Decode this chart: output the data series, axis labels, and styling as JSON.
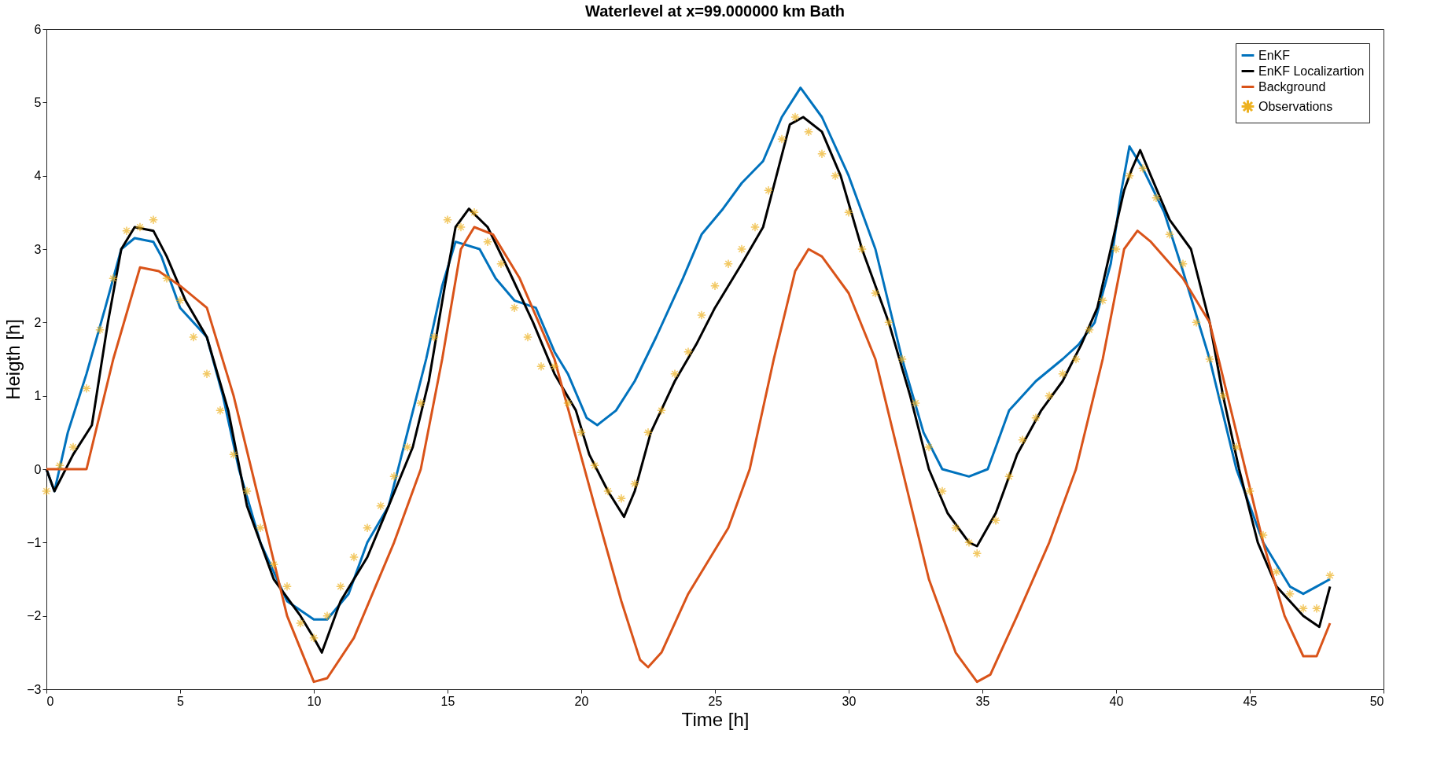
{
  "chart_data": {
    "type": "line",
    "title": "Waterlevel at x=99.000000 km Bath",
    "xlabel": "Time [h]",
    "ylabel": "Heigth [h]",
    "xlim": [
      0,
      50
    ],
    "xticks": [
      0,
      5,
      10,
      15,
      20,
      25,
      30,
      35,
      40,
      45,
      50
    ],
    "ylim": [
      -3,
      6
    ],
    "yticks": [
      -3,
      -2,
      -1,
      0,
      1,
      2,
      3,
      4,
      5,
      6
    ],
    "grid": false,
    "legend": "top right",
    "series": [
      {
        "name": "EnKF",
        "color": "#0072bd",
        "type": "line",
        "x": [
          0,
          0.3,
          0.8,
          1.5,
          2.2,
          2.8,
          3.3,
          4,
          4.3,
          5,
          6,
          6.6,
          7.2,
          8,
          9,
          10,
          10.5,
          11.3,
          12,
          12.8,
          13.5,
          14.2,
          14.8,
          15.3,
          16.2,
          16.8,
          17.5,
          18.3,
          19,
          19.5,
          20.2,
          20.6,
          21.3,
          22,
          22.8,
          23.8,
          24.5,
          25.3,
          26,
          26.8,
          27.5,
          28.2,
          29,
          30,
          31,
          32,
          32.8,
          33.5,
          34.5,
          35.2,
          36,
          37,
          38,
          38.6,
          39.2,
          39.8,
          40.2,
          40.5,
          41,
          41.8,
          42.5,
          43.5,
          44.5,
          45.5,
          46.5,
          47,
          47.5,
          48
        ],
        "values": [
          0,
          -0.3,
          0.5,
          1.3,
          2.2,
          3.0,
          3.15,
          3.1,
          2.9,
          2.2,
          1.8,
          1.0,
          0,
          -1.0,
          -1.8,
          -2.05,
          -2.05,
          -1.7,
          -1.0,
          -0.5,
          0.5,
          1.5,
          2.5,
          3.1,
          3.0,
          2.6,
          2.3,
          2.2,
          1.6,
          1.3,
          0.7,
          0.6,
          0.8,
          1.2,
          1.8,
          2.6,
          3.2,
          3.55,
          3.9,
          4.2,
          4.8,
          5.2,
          4.8,
          4.0,
          3.0,
          1.5,
          0.5,
          0,
          -0.1,
          0,
          0.8,
          1.2,
          1.5,
          1.7,
          2.0,
          2.8,
          3.8,
          4.4,
          4.1,
          3.5,
          2.7,
          1.5,
          0,
          -1.0,
          -1.6,
          -1.7,
          -1.6,
          -1.5
        ]
      },
      {
        "name": "EnKF Localizartion",
        "color": "#000000",
        "type": "line",
        "x": [
          0,
          0.3,
          1,
          1.7,
          2.3,
          2.8,
          3.3,
          4,
          4.5,
          5.2,
          6,
          6.8,
          7.5,
          8.5,
          9.5,
          10,
          10.3,
          11,
          12,
          12.8,
          13.7,
          14.3,
          14.9,
          15.3,
          15.8,
          16.5,
          17.3,
          18.2,
          19,
          19.8,
          20.3,
          21,
          21.6,
          22,
          22.6,
          23.5,
          24.3,
          25,
          26,
          26.8,
          27.3,
          27.8,
          28.3,
          29,
          29.7,
          30.5,
          31.5,
          32.3,
          33,
          33.7,
          34.5,
          34.8,
          35.5,
          36.3,
          37.2,
          38,
          38.7,
          39.3,
          39.8,
          40.3,
          40.6,
          40.9,
          41.3,
          42,
          42.8,
          43.5,
          44,
          44.6,
          45.3,
          46,
          47,
          47.6,
          48
        ],
        "values": [
          0,
          -0.3,
          0.2,
          0.6,
          2.0,
          3.0,
          3.3,
          3.25,
          2.9,
          2.3,
          1.8,
          0.8,
          -0.5,
          -1.5,
          -2.0,
          -2.3,
          -2.5,
          -1.8,
          -1.2,
          -0.5,
          0.3,
          1.2,
          2.5,
          3.3,
          3.55,
          3.3,
          2.7,
          2.0,
          1.3,
          0.8,
          0.2,
          -0.3,
          -0.65,
          -0.3,
          0.5,
          1.2,
          1.7,
          2.2,
          2.8,
          3.3,
          4.0,
          4.7,
          4.8,
          4.6,
          4.0,
          3.0,
          2.0,
          1.0,
          0,
          -0.6,
          -1.0,
          -1.05,
          -0.6,
          0.2,
          0.8,
          1.2,
          1.7,
          2.2,
          3.0,
          3.8,
          4.1,
          4.35,
          4.0,
          3.4,
          3.0,
          2.0,
          1.0,
          0,
          -1.0,
          -1.6,
          -2.0,
          -2.15,
          -1.6
        ]
      },
      {
        "name": "Background",
        "color": "#d95319",
        "type": "line",
        "x": [
          0,
          1.5,
          2.5,
          3.5,
          4.2,
          5,
          6,
          7,
          8,
          9,
          10,
          10.5,
          11.5,
          13,
          14,
          14.8,
          15.5,
          16,
          16.7,
          17.7,
          19,
          20.5,
          21.5,
          22.2,
          22.5,
          23,
          24,
          25.5,
          26.3,
          27.2,
          28,
          28.5,
          29,
          30,
          31,
          32,
          33,
          34,
          34.8,
          35.3,
          36.3,
          37.5,
          38.5,
          39.5,
          40.3,
          40.8,
          41.3,
          42.5,
          43.5,
          44.5,
          45.5,
          46.3,
          47,
          47.5,
          48
        ],
        "values": [
          0,
          0,
          1.5,
          2.75,
          2.7,
          2.5,
          2.2,
          1.0,
          -0.5,
          -2.0,
          -2.9,
          -2.85,
          -2.3,
          -1.0,
          0,
          1.5,
          3.0,
          3.3,
          3.2,
          2.6,
          1.5,
          -0.5,
          -1.8,
          -2.6,
          -2.7,
          -2.5,
          -1.7,
          -0.8,
          0,
          1.5,
          2.7,
          3.0,
          2.9,
          2.4,
          1.5,
          0,
          -1.5,
          -2.5,
          -2.9,
          -2.8,
          -2.0,
          -1.0,
          0,
          1.5,
          3.0,
          3.25,
          3.1,
          2.6,
          2.0,
          0.5,
          -1.0,
          -2.0,
          -2.55,
          -2.55,
          -2.1
        ]
      },
      {
        "name": "Observations",
        "color": "#edb120",
        "type": "scatter",
        "marker": "cross",
        "x": [
          0,
          0.5,
          1,
          1.5,
          2,
          2.5,
          3,
          3.5,
          4,
          4.5,
          5,
          5.5,
          6,
          6.5,
          7,
          7.5,
          8,
          8.5,
          9,
          9.5,
          10,
          10.5,
          11,
          11.5,
          12,
          12.5,
          13,
          13.5,
          14,
          14.5,
          15,
          15.5,
          16,
          16.5,
          17,
          17.5,
          18,
          18.5,
          19,
          19.5,
          20,
          20.5,
          21,
          21.5,
          22,
          22.5,
          23,
          23.5,
          24,
          24.5,
          25,
          25.5,
          26,
          26.5,
          27,
          27.5,
          28,
          28.5,
          29,
          29.5,
          30,
          30.5,
          31,
          31.5,
          32,
          32.5,
          33,
          33.5,
          34,
          34.5,
          34.8,
          35.5,
          36,
          36.5,
          37,
          37.5,
          38,
          38.5,
          39,
          39.5,
          40,
          40.5,
          41,
          41.5,
          42,
          42.5,
          43,
          43.5,
          44,
          44.5,
          45,
          45.5,
          46,
          46.5,
          47,
          47.5,
          48
        ],
        "values": [
          -0.3,
          0.05,
          0.3,
          1.1,
          1.9,
          2.6,
          3.25,
          3.3,
          3.4,
          2.6,
          2.3,
          1.8,
          1.3,
          0.8,
          0.2,
          -0.3,
          -0.8,
          -1.3,
          -1.6,
          -2.1,
          -2.3,
          -2.0,
          -1.6,
          -1.2,
          -0.8,
          -0.5,
          -0.1,
          0.3,
          0.9,
          1.8,
          3.4,
          3.3,
          3.5,
          3.1,
          2.8,
          2.2,
          1.8,
          1.4,
          1.4,
          0.9,
          0.5,
          0.05,
          -0.3,
          -0.4,
          -0.2,
          0.5,
          0.8,
          1.3,
          1.6,
          2.1,
          2.5,
          2.8,
          3.0,
          3.3,
          3.8,
          4.5,
          4.8,
          4.6,
          4.3,
          4.0,
          3.5,
          3.0,
          2.4,
          2.0,
          1.5,
          0.9,
          0.3,
          -0.3,
          -0.8,
          -1.0,
          -1.15,
          -0.7,
          -0.1,
          0.4,
          0.7,
          1.0,
          1.3,
          1.5,
          1.9,
          2.3,
          3.0,
          4.0,
          4.1,
          3.7,
          3.2,
          2.8,
          2.0,
          1.5,
          1.0,
          0.3,
          -0.3,
          -0.9,
          -1.4,
          -1.7,
          -1.9,
          -1.9,
          -1.45
        ]
      }
    ]
  }
}
